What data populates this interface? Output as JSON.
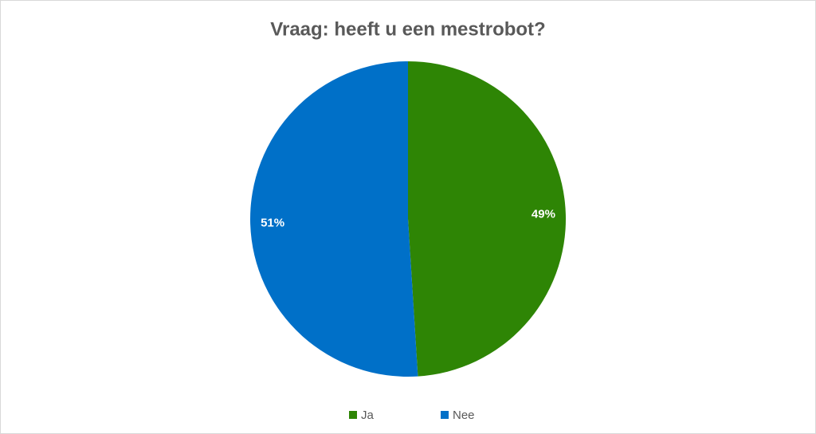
{
  "chart_data": {
    "type": "pie",
    "title": "Vraag: heeft u een mestrobot?",
    "categories": [
      "Ja",
      "Nee"
    ],
    "values": [
      49,
      51
    ],
    "value_labels": [
      "49%",
      "51%"
    ],
    "colors": [
      "#2e8505",
      "#0070c8"
    ],
    "legend": "bottom"
  }
}
